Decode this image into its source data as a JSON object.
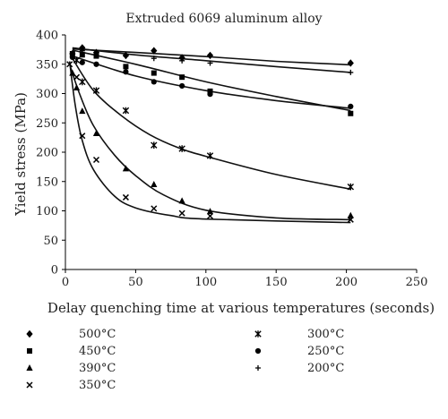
{
  "chart_data": {
    "type": "scatter",
    "title": "Extruded 6069 aluminum alloy",
    "xlabel": "Delay quenching time at various temperatures (seconds)",
    "ylabel": "Yield stress (MPa)",
    "xlim": [
      0,
      250
    ],
    "ylim": [
      0,
      400
    ],
    "xticks": [
      0,
      50,
      100,
      150,
      200,
      250
    ],
    "yticks": [
      0,
      50,
      100,
      150,
      200,
      250,
      300,
      350,
      400
    ],
    "grid": false,
    "legend_position": "bottom",
    "series": [
      {
        "name": "500°C",
        "marker": "diamond",
        "x": [
          5,
          12,
          22,
          43,
          63,
          83,
          103,
          203
        ],
        "y": [
          368,
          378,
          370,
          365,
          373,
          361,
          365,
          352
        ],
        "fit": [
          [
            5,
            376
          ],
          [
            50,
            370
          ],
          [
            100,
            363
          ],
          [
            150,
            355
          ],
          [
            203,
            349
          ]
        ]
      },
      {
        "name": "450°C",
        "marker": "square",
        "x": [
          5,
          12,
          22,
          43,
          63,
          83,
          103,
          203
        ],
        "y": [
          368,
          366,
          364,
          346,
          335,
          328,
          304,
          266
        ],
        "fit": [
          [
            5,
            374
          ],
          [
            50,
            350
          ],
          [
            100,
            320
          ],
          [
            150,
            295
          ],
          [
            203,
            271
          ]
        ]
      },
      {
        "name": "390°C",
        "marker": "triangle",
        "x": [
          5,
          8,
          12,
          22,
          43,
          63,
          83,
          103,
          203
        ],
        "y": [
          335,
          310,
          270,
          232,
          172,
          145,
          117,
          99,
          92
        ],
        "fit": [
          [
            3,
            350
          ],
          [
            10,
            300
          ],
          [
            20,
            245
          ],
          [
            35,
            195
          ],
          [
            50,
            160
          ],
          [
            70,
            127
          ],
          [
            100,
            101
          ],
          [
            150,
            88
          ],
          [
            203,
            85
          ]
        ]
      },
      {
        "name": "350°C",
        "marker": "x",
        "x": [
          3,
          8,
          12,
          22,
          43,
          63,
          83,
          103,
          203
        ],
        "y": [
          350,
          328,
          228,
          187,
          123,
          104,
          96,
          91,
          85
        ],
        "fit": [
          [
            3,
            355
          ],
          [
            7,
            280
          ],
          [
            12,
            220
          ],
          [
            20,
            170
          ],
          [
            35,
            125
          ],
          [
            50,
            105
          ],
          [
            75,
            92
          ],
          [
            100,
            86
          ],
          [
            203,
            80
          ]
        ]
      },
      {
        "name": "300°C",
        "marker": "star",
        "x": [
          8,
          12,
          22,
          43,
          63,
          83,
          103,
          203
        ],
        "y": [
          357,
          320,
          305,
          271,
          212,
          206,
          194,
          141
        ],
        "fit": [
          [
            5,
            360
          ],
          [
            20,
            305
          ],
          [
            40,
            262
          ],
          [
            60,
            230
          ],
          [
            80,
            208
          ],
          [
            100,
            193
          ],
          [
            150,
            162
          ],
          [
            203,
            137
          ]
        ]
      },
      {
        "name": "250°C",
        "marker": "circle",
        "x": [
          5,
          12,
          22,
          43,
          63,
          83,
          103,
          203
        ],
        "y": [
          362,
          353,
          350,
          337,
          320,
          313,
          299,
          278
        ],
        "fit": [
          [
            5,
            364
          ],
          [
            50,
            330
          ],
          [
            100,
            305
          ],
          [
            150,
            288
          ],
          [
            203,
            275
          ]
        ]
      },
      {
        "name": "200°C",
        "marker": "plus",
        "x": [
          12,
          22,
          43,
          63,
          83,
          103,
          203
        ],
        "y": [
          373,
          369,
          364,
          360,
          356,
          352,
          336
        ],
        "fit": [
          [
            5,
            378
          ],
          [
            50,
            366
          ],
          [
            100,
            356
          ],
          [
            150,
            346
          ],
          [
            203,
            336
          ]
        ]
      }
    ],
    "legend_columns": [
      [
        "500°C",
        "450°C",
        "390°C",
        "350°C"
      ],
      [
        "300°C",
        "250°C",
        "200°C"
      ]
    ]
  }
}
